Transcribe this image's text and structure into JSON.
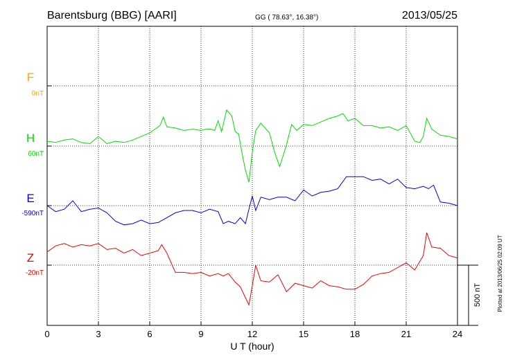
{
  "header": {
    "station": "Barentsburg (BBG)  [AARI]",
    "coords": "GG ( 78.63°,  16.38°)",
    "date": "2013/05/25"
  },
  "side_note": "Plotted at 2013/06/25 02:09 UT",
  "chart_data": {
    "type": "line",
    "xlabel": "U T (hour)",
    "x_ticks": [
      "0",
      "3",
      "6",
      "9",
      "12",
      "15",
      "18",
      "21",
      "24"
    ],
    "xlim": [
      0,
      24
    ],
    "grid": true,
    "scale_bar": {
      "label": "500 nT",
      "nT": 500
    },
    "series": [
      {
        "name": "F",
        "baseline_label": "0nT",
        "color": "#FFA500",
        "x": [],
        "y": []
      },
      {
        "name": "H",
        "baseline_label": "60nT",
        "color": "#00DD00",
        "x": [
          0,
          0.5,
          1,
          1.5,
          2,
          2.5,
          3,
          3.5,
          4,
          4.5,
          5,
          5.5,
          6,
          6.3,
          6.6,
          6.8,
          7,
          7.5,
          8,
          8.5,
          9,
          9.3,
          9.6,
          9.8,
          10,
          10.2,
          10.5,
          10.8,
          11,
          11.2,
          11.4,
          11.6,
          11.8,
          12,
          12.2,
          12.5,
          13,
          13.3,
          13.6,
          14,
          14.3,
          14.6,
          15,
          15.5,
          16,
          16.5,
          17,
          17.3,
          17.6,
          18,
          18.5,
          19,
          19.5,
          20,
          20.5,
          21,
          21.5,
          21.8,
          22,
          22.2,
          22.5,
          23,
          23.5,
          24
        ],
        "y": [
          40,
          30,
          50,
          60,
          30,
          20,
          80,
          20,
          40,
          30,
          50,
          80,
          110,
          140,
          170,
          240,
          160,
          150,
          130,
          140,
          130,
          140,
          140,
          130,
          210,
          120,
          300,
          250,
          120,
          100,
          -60,
          -200,
          -300,
          -50,
          130,
          190,
          110,
          -50,
          -170,
          10,
          180,
          130,
          180,
          170,
          200,
          230,
          250,
          270,
          210,
          230,
          170,
          170,
          150,
          160,
          130,
          170,
          40,
          30,
          80,
          230,
          140,
          90,
          80,
          60
        ]
      },
      {
        "name": "E",
        "baseline_label": "-590nT",
        "color": "#0000DD",
        "x": [
          0,
          0.5,
          1,
          1.5,
          2,
          2.5,
          3,
          3.5,
          4,
          4.5,
          5,
          5.5,
          6,
          6.5,
          7,
          7.5,
          8,
          8.5,
          9,
          9.5,
          10,
          10.3,
          10.6,
          11,
          11.3,
          11.6,
          11.8,
          12,
          12.2,
          12.5,
          13,
          13.5,
          14,
          14.5,
          15,
          15.5,
          16,
          16.5,
          17,
          17.5,
          18,
          18.5,
          19,
          19.5,
          20,
          20.5,
          21,
          21.5,
          22,
          22.3,
          22.6,
          23,
          23.5,
          24
        ],
        "y": [
          0,
          -50,
          -30,
          40,
          -50,
          -30,
          -20,
          -60,
          -130,
          -160,
          -150,
          -120,
          -150,
          -140,
          -100,
          -60,
          -40,
          -40,
          -60,
          -30,
          -50,
          -150,
          -130,
          -150,
          -100,
          -150,
          -30,
          80,
          -40,
          70,
          50,
          70,
          70,
          40,
          130,
          80,
          110,
          120,
          140,
          240,
          240,
          240,
          210,
          220,
          180,
          220,
          150,
          140,
          160,
          140,
          170,
          30,
          20,
          0
        ]
      },
      {
        "name": "Z",
        "baseline_label": "-20nT",
        "color": "#EE0000",
        "x": [
          0,
          0.5,
          1,
          1.5,
          2,
          2.5,
          3,
          3.5,
          4,
          4.5,
          5,
          5.5,
          6,
          6.5,
          6.7,
          7,
          7.5,
          8,
          8.5,
          9,
          9.5,
          10,
          10.3,
          10.6,
          11,
          11.3,
          11.6,
          11.8,
          12,
          12.2,
          12.5,
          13,
          13.5,
          14,
          14.5,
          15,
          15.5,
          16,
          16.5,
          17,
          17.5,
          18,
          18.5,
          19,
          19.5,
          20,
          20.5,
          21,
          21.5,
          22,
          22.2,
          22.5,
          23,
          23.5,
          24
        ],
        "y": [
          110,
          160,
          180,
          150,
          170,
          160,
          180,
          130,
          140,
          100,
          130,
          80,
          100,
          120,
          170,
          100,
          -60,
          -60,
          -70,
          -60,
          -90,
          -70,
          -90,
          -70,
          -140,
          -180,
          -270,
          -330,
          -170,
          0,
          -130,
          -140,
          -80,
          -220,
          -150,
          -170,
          -190,
          -130,
          -170,
          -180,
          -200,
          -200,
          -160,
          -90,
          -70,
          -60,
          -20,
          20,
          -40,
          80,
          270,
          150,
          140,
          80,
          60
        ]
      }
    ]
  }
}
